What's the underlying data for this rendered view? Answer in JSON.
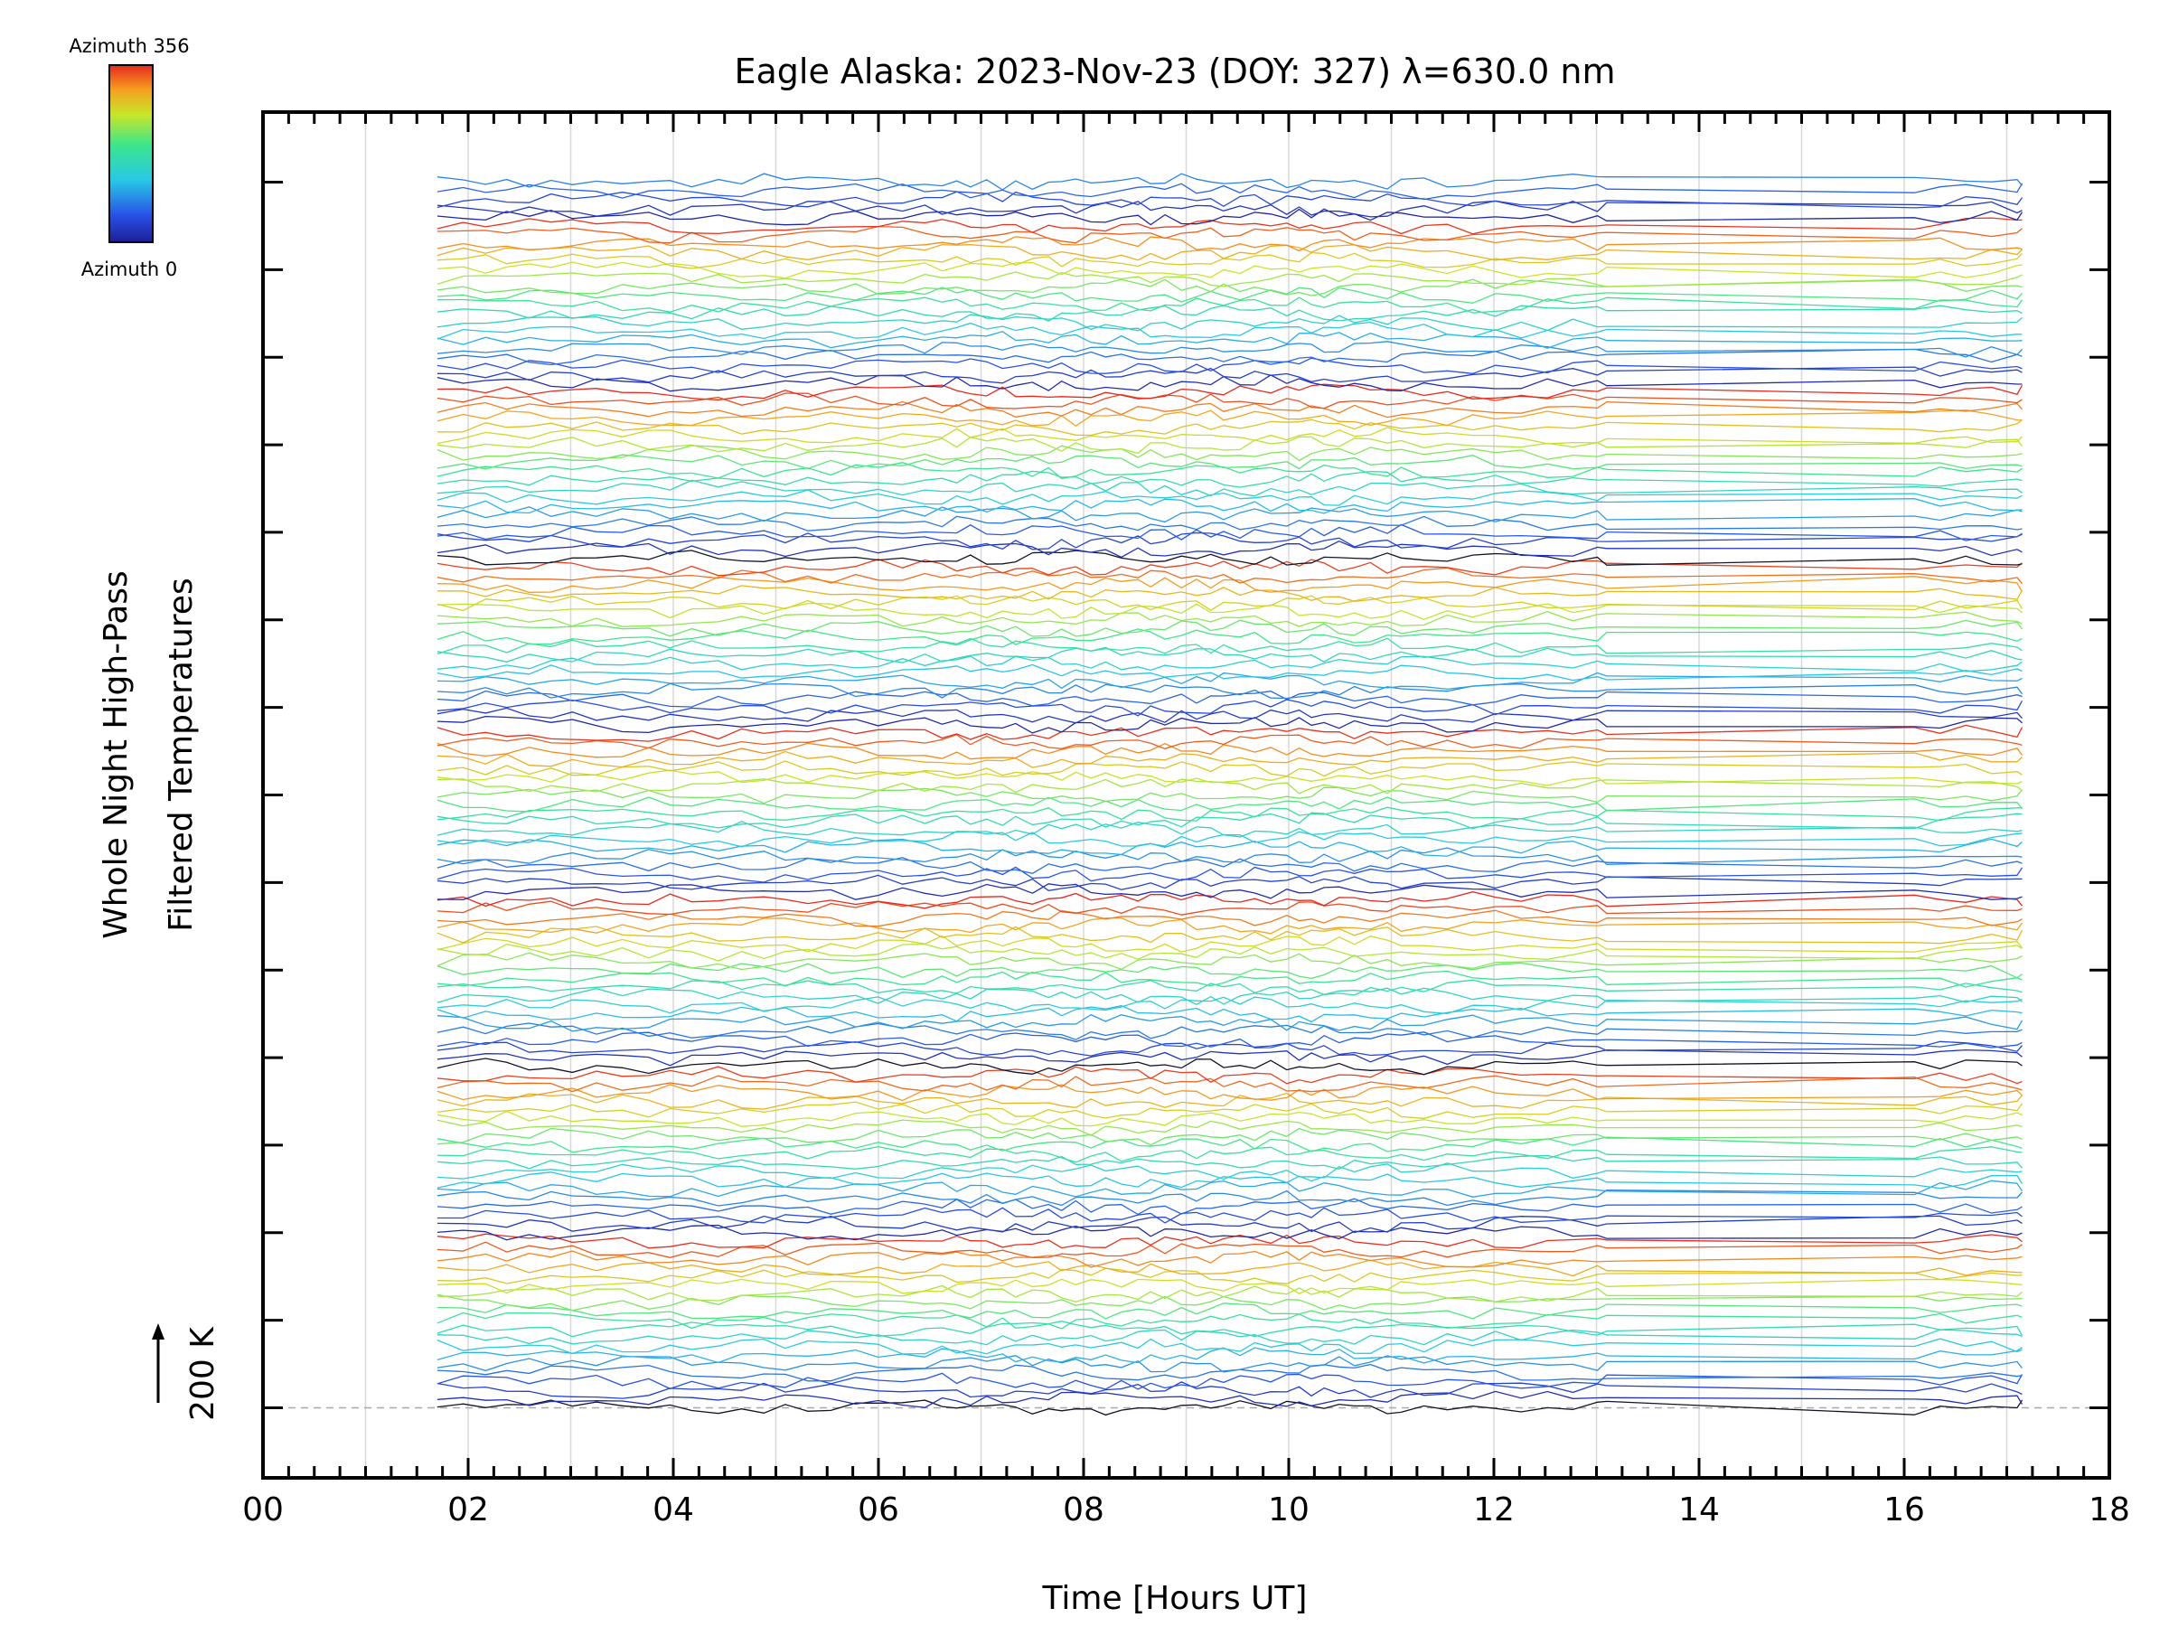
{
  "chart_data": {
    "type": "line",
    "title": "Eagle Alaska: 2023-Nov-23 (DOY: 327) λ=630.0 nm",
    "xlabel": "Time [Hours UT]",
    "ylabel_line1": "Whole Night High-Pass",
    "ylabel_line2": "Filtered Temperatures",
    "scale_label": "200 K",
    "colorbar": {
      "top_label": "Azimuth 356",
      "bottom_label": "Azimuth 0",
      "min": 0,
      "max": 356
    },
    "xlim": [
      0,
      18
    ],
    "x_major_ticks": [
      0,
      2,
      4,
      6,
      8,
      10,
      12,
      14,
      16,
      18
    ],
    "x_tick_labels": [
      "00",
      "02",
      "04",
      "06",
      "08",
      "10",
      "12",
      "14",
      "16",
      "18"
    ],
    "x_minor_step": 0.25,
    "vertical_gridlines": [
      1,
      2,
      3,
      4,
      5,
      6,
      7,
      8,
      9,
      10,
      11,
      12,
      13,
      14,
      15,
      16,
      17
    ],
    "ylim": [
      -0.8,
      14.8
    ],
    "y_tick_count": 15,
    "baseline_offset": 0,
    "time_range": [
      1.7,
      17.15
    ],
    "data_gap": [
      13.1,
      16.1
    ],
    "n_traces": 141,
    "azimuth_step": 18.6,
    "trace_offset_step": 0.1,
    "amplitude_scale": 0.09,
    "colormap": "rainbow (blue at azimuth 0, green-yellow mid, red at azimuth 356)"
  }
}
